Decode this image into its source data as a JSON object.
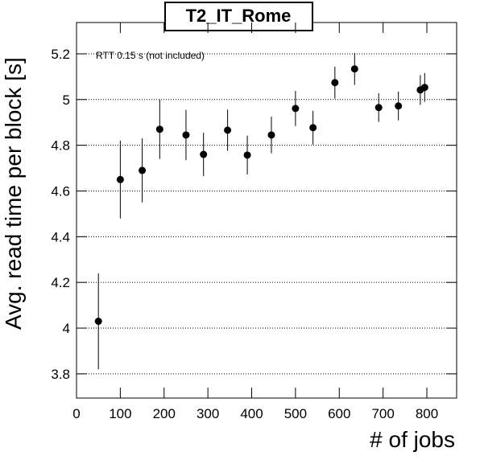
{
  "chart_data": {
    "type": "scatter",
    "title": "T2_IT_Rome",
    "annotation": "RTT 0.15 s (not included)",
    "x_label": "# of jobs",
    "y_label": "Avg. read time per block [s]",
    "color": "#000000",
    "x": [
      50,
      100,
      150,
      190,
      250,
      290,
      345,
      390,
      445,
      500,
      540,
      590,
      635,
      690,
      735,
      785,
      795
    ],
    "values": [
      4.03,
      4.65,
      4.69,
      4.87,
      4.845,
      4.76,
      4.866,
      4.757,
      4.845,
      4.961,
      4.877,
      5.074,
      5.134,
      4.965,
      4.972,
      5.042,
      5.053
    ],
    "errors": [
      0.21,
      0.17,
      0.14,
      0.13,
      0.11,
      0.095,
      0.09,
      0.085,
      0.08,
      0.077,
      0.074,
      0.07,
      0.07,
      0.063,
      0.063,
      0.065,
      0.063
    ],
    "xlim": [
      0,
      868
    ],
    "ylim": [
      3.694,
      5.337
    ],
    "xticks": [
      0,
      100,
      200,
      300,
      400,
      500,
      600,
      700,
      800
    ],
    "yticks": [
      3.8,
      4,
      4.2,
      4.4,
      4.6,
      4.8,
      5,
      5.2
    ],
    "grid": "y"
  }
}
